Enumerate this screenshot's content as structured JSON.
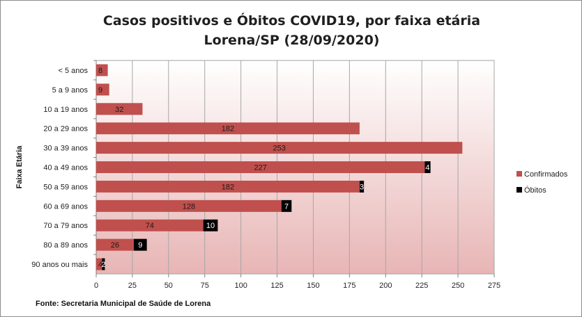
{
  "chart_data": {
    "type": "bar",
    "orientation": "horizontal",
    "stacked": true,
    "title_line1": "Casos positivos e Óbitos COVID19, por faixa etária",
    "title_line2": "Lorena/SP (28/09/2020)",
    "ylabel": "Faixa Etária",
    "xlabel": "",
    "xlim": [
      0,
      275
    ],
    "xticks": [
      0,
      25,
      50,
      75,
      100,
      125,
      150,
      175,
      200,
      225,
      250,
      275
    ],
    "grid": true,
    "legend_position": "right",
    "categories": [
      "< 5 anos",
      "5 a 9 anos",
      "10 a 19 anos",
      "20 a 29 anos",
      "30 a 39 anos",
      "40 a 49 anos",
      "50 a 59 anos",
      "60 a 69 anos",
      "70 a 79 anos",
      "80 a 89 anos",
      "90 anos ou mais"
    ],
    "series": [
      {
        "name": "Confirmados",
        "color": "#c0504d",
        "values": [
          8,
          9,
          32,
          182,
          253,
          227,
          182,
          128,
          74,
          26,
          4
        ]
      },
      {
        "name": "Óbitos",
        "color": "#000000",
        "values": [
          0,
          0,
          0,
          0,
          0,
          4,
          3,
          7,
          10,
          9,
          2
        ]
      }
    ],
    "source": "Fonte: Secretaria Municipal  de Saúde de Lorena"
  }
}
